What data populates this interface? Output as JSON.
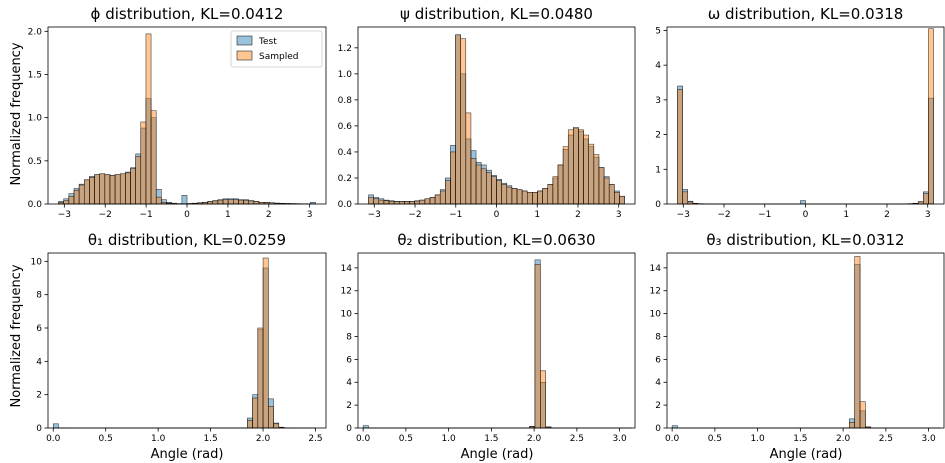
{
  "colors": {
    "test": "#1f77b4",
    "sampled": "#ff7f0e"
  },
  "legend": {
    "test_label": "Test",
    "sampled_label": "Sampled"
  },
  "ylabel": "Normalized frequency",
  "xlabel": "Angle (rad)",
  "chart_data": [
    {
      "type": "bar",
      "title": "ϕ distribution, KL=0.0412",
      "xlim": [
        -3.4,
        3.4
      ],
      "ylim": [
        0,
        2.05
      ],
      "xticks": [
        -3,
        -2,
        -1,
        0,
        1,
        2,
        3
      ],
      "xtick_labels": [
        "−3",
        "−2",
        "−1",
        "0",
        "1",
        "2",
        "3"
      ],
      "yticks": [
        0,
        0.5,
        1.0,
        1.5,
        2.0
      ],
      "ytick_labels": [
        "0.0",
        "0.5",
        "1.0",
        "1.5",
        "2.0"
      ],
      "bin_start": -3.14159,
      "bin_width": 0.1257,
      "series": [
        {
          "name": "Test",
          "values": [
            0.03,
            0.06,
            0.12,
            0.18,
            0.23,
            0.28,
            0.32,
            0.34,
            0.35,
            0.34,
            0.33,
            0.34,
            0.35,
            0.37,
            0.42,
            0.58,
            0.88,
            1.22,
            1.0,
            0.17,
            0.05,
            0.02,
            0.01,
            0.005,
            0.1,
            0.005,
            0.01,
            0.015,
            0.02,
            0.03,
            0.04,
            0.05,
            0.06,
            0.06,
            0.06,
            0.05,
            0.05,
            0.04,
            0.03,
            0.02,
            0.02,
            0.015,
            0.01,
            0.008,
            0.006,
            0.005,
            0.004,
            0.003,
            0.003,
            0.02
          ]
        },
        {
          "name": "Sampled",
          "values": [
            0.02,
            0.04,
            0.09,
            0.16,
            0.22,
            0.28,
            0.31,
            0.34,
            0.35,
            0.34,
            0.33,
            0.34,
            0.35,
            0.36,
            0.41,
            0.55,
            0.95,
            1.97,
            1.08,
            0.08,
            0.02,
            0.01,
            0.005,
            0.003,
            0.004,
            0.005,
            0.008,
            0.012,
            0.018,
            0.025,
            0.035,
            0.045,
            0.05,
            0.05,
            0.05,
            0.045,
            0.04,
            0.035,
            0.03,
            0.02,
            0.018,
            0.014,
            0.01,
            0.008,
            0.006,
            0.005,
            0.004,
            0.003,
            0.002,
            0.001
          ]
        }
      ]
    },
    {
      "type": "bar",
      "title": "ψ distribution, KL=0.0480",
      "xlim": [
        -3.4,
        3.4
      ],
      "ylim": [
        0,
        1.36
      ],
      "xticks": [
        -3,
        -2,
        -1,
        0,
        1,
        2,
        3
      ],
      "xtick_labels": [
        "−3",
        "−2",
        "−1",
        "0",
        "1",
        "2",
        "3"
      ],
      "yticks": [
        0,
        0.2,
        0.4,
        0.6,
        0.8,
        1.0,
        1.2
      ],
      "ytick_labels": [
        "0.0",
        "0.2",
        "0.4",
        "0.6",
        "0.8",
        "1.0",
        "1.2"
      ],
      "bin_start": -3.14159,
      "bin_width": 0.1257,
      "series": [
        {
          "name": "Test",
          "values": [
            0.07,
            0.05,
            0.04,
            0.03,
            0.025,
            0.02,
            0.02,
            0.02,
            0.02,
            0.025,
            0.03,
            0.04,
            0.05,
            0.07,
            0.11,
            0.2,
            0.45,
            1.3,
            1.0,
            0.5,
            0.41,
            0.32,
            0.3,
            0.26,
            0.22,
            0.19,
            0.16,
            0.14,
            0.12,
            0.11,
            0.1,
            0.09,
            0.09,
            0.1,
            0.12,
            0.15,
            0.2,
            0.3,
            0.42,
            0.53,
            0.58,
            0.56,
            0.5,
            0.44,
            0.36,
            0.28,
            0.21,
            0.15,
            0.1,
            0.06
          ]
        },
        {
          "name": "Sampled",
          "values": [
            0.05,
            0.04,
            0.03,
            0.025,
            0.02,
            0.018,
            0.018,
            0.018,
            0.02,
            0.022,
            0.03,
            0.04,
            0.05,
            0.07,
            0.1,
            0.18,
            0.4,
            1.3,
            1.27,
            0.7,
            0.35,
            0.3,
            0.27,
            0.24,
            0.21,
            0.18,
            0.15,
            0.13,
            0.12,
            0.11,
            0.1,
            0.09,
            0.09,
            0.1,
            0.12,
            0.15,
            0.21,
            0.3,
            0.44,
            0.57,
            0.59,
            0.57,
            0.53,
            0.46,
            0.38,
            0.28,
            0.2,
            0.15,
            0.09,
            0.06
          ]
        }
      ]
    },
    {
      "type": "bar",
      "title": "ω distribution, KL=0.0318",
      "xlim": [
        -3.4,
        3.4
      ],
      "ylim": [
        0,
        5.1
      ],
      "xticks": [
        -3,
        -2,
        -1,
        0,
        1,
        2,
        3
      ],
      "xtick_labels": [
        "−3",
        "−2",
        "−1",
        "0",
        "1",
        "2",
        "3"
      ],
      "yticks": [
        0,
        1,
        2,
        3,
        4,
        5
      ],
      "ytick_labels": [
        "0",
        "1",
        "2",
        "3",
        "4",
        "5"
      ],
      "bin_start": -3.14159,
      "bin_width": 0.1257,
      "series": [
        {
          "name": "Test",
          "values": [
            3.4,
            0.42,
            0.08,
            0.02,
            0.01,
            0.005,
            0.004,
            0.003,
            0.002,
            0.002,
            0.002,
            0.002,
            0.002,
            0.002,
            0.002,
            0.002,
            0.002,
            0.002,
            0.002,
            0.002,
            0.002,
            0.002,
            0.002,
            0.002,
            0.1,
            0.002,
            0.002,
            0.002,
            0.002,
            0.002,
            0.002,
            0.002,
            0.002,
            0.002,
            0.002,
            0.002,
            0.002,
            0.002,
            0.002,
            0.002,
            0.002,
            0.002,
            0.003,
            0.004,
            0.005,
            0.01,
            0.02,
            0.07,
            0.35,
            3.05
          ]
        },
        {
          "name": "Sampled",
          "values": [
            3.3,
            0.35,
            0.06,
            0.015,
            0.008,
            0.004,
            0.003,
            0.002,
            0.002,
            0.002,
            0.002,
            0.002,
            0.002,
            0.002,
            0.002,
            0.002,
            0.002,
            0.002,
            0.002,
            0.002,
            0.002,
            0.002,
            0.002,
            0.002,
            0.002,
            0.002,
            0.002,
            0.002,
            0.002,
            0.002,
            0.002,
            0.002,
            0.002,
            0.002,
            0.002,
            0.002,
            0.002,
            0.002,
            0.002,
            0.002,
            0.002,
            0.002,
            0.003,
            0.004,
            0.005,
            0.01,
            0.02,
            0.06,
            0.3,
            5.05
          ]
        }
      ]
    },
    {
      "type": "bar",
      "title": "θ₁ distribution, KL=0.0259",
      "xlim": [
        -0.05,
        2.6
      ],
      "ylim": [
        0,
        10.5
      ],
      "xticks": [
        0,
        0.5,
        1.0,
        1.5,
        2.0,
        2.5
      ],
      "xtick_labels": [
        "0.0",
        "0.5",
        "1.0",
        "1.5",
        "2.0",
        "2.5"
      ],
      "yticks": [
        0,
        2,
        4,
        6,
        8,
        10
      ],
      "ytick_labels": [
        "0",
        "2",
        "4",
        "6",
        "8",
        "10"
      ],
      "bin_start": 0,
      "bin_width": 0.05,
      "series": [
        {
          "name": "Test",
          "values": [
            0.25,
            0.01,
            0.005,
            0.003,
            0.002,
            0.002,
            0.002,
            0.002,
            0.002,
            0.002,
            0.002,
            0.002,
            0.002,
            0.002,
            0.002,
            0.002,
            0.002,
            0.002,
            0.002,
            0.002,
            0.002,
            0.002,
            0.002,
            0.002,
            0.002,
            0.002,
            0.002,
            0.002,
            0.002,
            0.002,
            0.002,
            0.002,
            0.002,
            0.002,
            0.002,
            0.002,
            0.005,
            0.6,
            2.0,
            5.9,
            9.6,
            1.75,
            0.3,
            0.05,
            0.01,
            0.005,
            0.003,
            0.002,
            0.002,
            0.002
          ]
        },
        {
          "name": "Sampled",
          "values": [
            0.01,
            0.005,
            0.003,
            0.002,
            0.002,
            0.002,
            0.002,
            0.002,
            0.002,
            0.002,
            0.002,
            0.002,
            0.002,
            0.002,
            0.002,
            0.002,
            0.002,
            0.002,
            0.002,
            0.002,
            0.002,
            0.002,
            0.002,
            0.002,
            0.002,
            0.002,
            0.002,
            0.002,
            0.002,
            0.002,
            0.002,
            0.002,
            0.002,
            0.002,
            0.002,
            0.002,
            0.004,
            0.45,
            1.8,
            6.0,
            10.2,
            1.3,
            0.25,
            0.04,
            0.01,
            0.004,
            0.002,
            0.002,
            0.002,
            0.002
          ]
        }
      ]
    },
    {
      "type": "bar",
      "title": "θ₂ distribution, KL=0.0630",
      "xlim": [
        -0.06,
        3.18
      ],
      "ylim": [
        0,
        15.3
      ],
      "xticks": [
        0,
        0.5,
        1.0,
        1.5,
        2.0,
        2.5,
        3.0
      ],
      "xtick_labels": [
        "0.0",
        "0.5",
        "1.0",
        "1.5",
        "2.0",
        "2.5",
        "3.0"
      ],
      "yticks": [
        0,
        2,
        4,
        6,
        8,
        10,
        12,
        14
      ],
      "ytick_labels": [
        "0",
        "2",
        "4",
        "6",
        "8",
        "10",
        "12",
        "14"
      ],
      "bin_start": 0,
      "bin_width": 0.0628,
      "series": [
        {
          "name": "Test",
          "values": [
            0.2,
            0.01,
            0.005,
            0.003,
            0.002,
            0.002,
            0.002,
            0.002,
            0.002,
            0.002,
            0.002,
            0.002,
            0.002,
            0.002,
            0.002,
            0.002,
            0.002,
            0.002,
            0.002,
            0.002,
            0.002,
            0.002,
            0.002,
            0.002,
            0.002,
            0.002,
            0.002,
            0.002,
            0.002,
            0.002,
            0.002,
            0.15,
            14.7,
            4.0,
            0.1,
            0.01,
            0.005,
            0.003,
            0.002,
            0.002,
            0.002,
            0.002,
            0.002,
            0.002,
            0.002,
            0.002,
            0.002,
            0.002,
            0.002,
            0.002
          ]
        },
        {
          "name": "Sampled",
          "values": [
            0.01,
            0.005,
            0.003,
            0.002,
            0.002,
            0.002,
            0.002,
            0.002,
            0.002,
            0.002,
            0.002,
            0.002,
            0.002,
            0.002,
            0.002,
            0.002,
            0.002,
            0.002,
            0.002,
            0.002,
            0.002,
            0.002,
            0.002,
            0.002,
            0.002,
            0.002,
            0.002,
            0.002,
            0.002,
            0.002,
            0.002,
            0.1,
            14.3,
            5.0,
            0.08,
            0.01,
            0.005,
            0.003,
            0.002,
            0.002,
            0.002,
            0.002,
            0.002,
            0.002,
            0.002,
            0.002,
            0.002,
            0.002,
            0.002,
            0.002
          ]
        }
      ]
    },
    {
      "type": "bar",
      "title": "θ₃ distribution, KL=0.0312",
      "xlim": [
        -0.06,
        3.18
      ],
      "ylim": [
        0,
        15.3
      ],
      "xticks": [
        0,
        0.5,
        1.0,
        1.5,
        2.0,
        2.5,
        3.0
      ],
      "xtick_labels": [
        "0.0",
        "0.5",
        "1.0",
        "1.5",
        "2.0",
        "2.5",
        "3.0"
      ],
      "yticks": [
        0,
        2,
        4,
        6,
        8,
        10,
        12,
        14
      ],
      "ytick_labels": [
        "0",
        "2",
        "4",
        "6",
        "8",
        "10",
        "12",
        "14"
      ],
      "bin_start": 0,
      "bin_width": 0.0628,
      "series": [
        {
          "name": "Test",
          "values": [
            0.2,
            0.01,
            0.005,
            0.003,
            0.002,
            0.002,
            0.002,
            0.002,
            0.002,
            0.002,
            0.002,
            0.002,
            0.002,
            0.002,
            0.002,
            0.002,
            0.002,
            0.002,
            0.002,
            0.002,
            0.002,
            0.002,
            0.002,
            0.002,
            0.002,
            0.002,
            0.002,
            0.002,
            0.002,
            0.002,
            0.002,
            0.002,
            0.02,
            0.8,
            14.3,
            1.5,
            0.1,
            0.01,
            0.005,
            0.003,
            0.002,
            0.002,
            0.002,
            0.002,
            0.002,
            0.002,
            0.002,
            0.002,
            0.002,
            0.002
          ]
        },
        {
          "name": "Sampled",
          "values": [
            0.01,
            0.005,
            0.003,
            0.002,
            0.002,
            0.002,
            0.002,
            0.002,
            0.002,
            0.002,
            0.002,
            0.002,
            0.002,
            0.002,
            0.002,
            0.002,
            0.002,
            0.002,
            0.002,
            0.002,
            0.002,
            0.002,
            0.002,
            0.002,
            0.002,
            0.002,
            0.002,
            0.002,
            0.002,
            0.002,
            0.002,
            0.002,
            0.02,
            0.5,
            15.0,
            2.3,
            0.08,
            0.01,
            0.005,
            0.003,
            0.002,
            0.002,
            0.002,
            0.002,
            0.002,
            0.002,
            0.002,
            0.002,
            0.002,
            0.002
          ]
        }
      ]
    }
  ]
}
